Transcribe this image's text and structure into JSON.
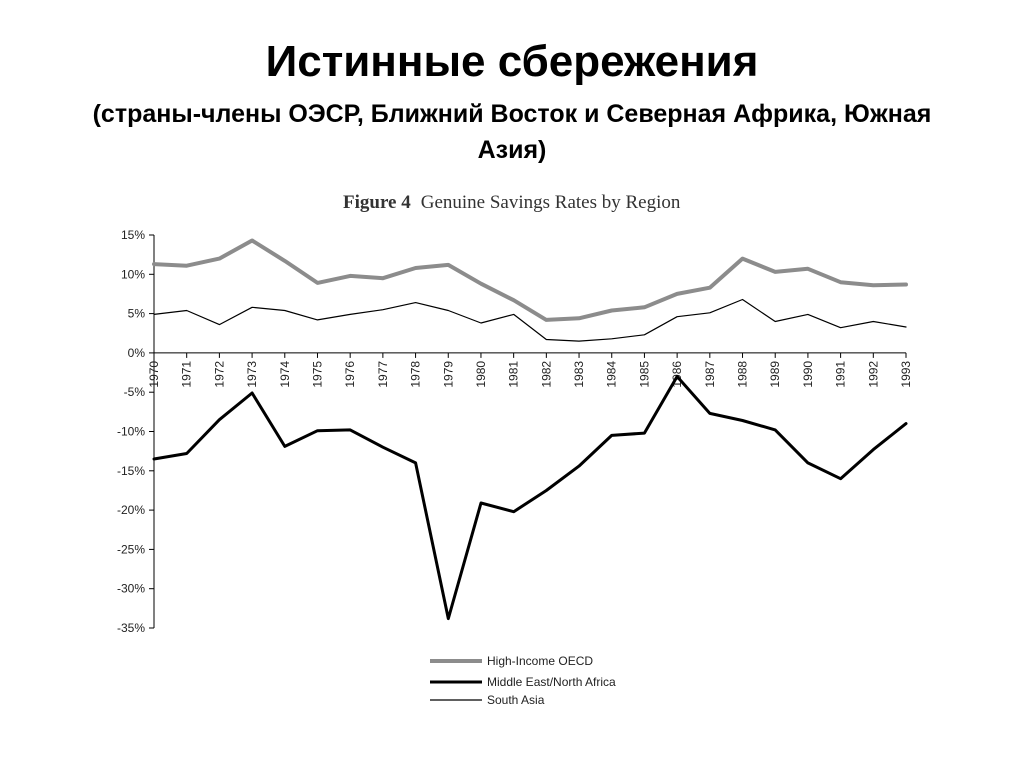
{
  "slide": {
    "title": "Истинные сбережения",
    "subtitle": "(страны-члены ОЭСР, Ближний Восток и Северная Африка, Южная Азия)"
  },
  "chart_data": {
    "type": "line",
    "figure_label": "Figure 4",
    "title": "Genuine Savings Rates by Region",
    "xlabel": "",
    "ylabel": "",
    "x": [
      "1970",
      "1971",
      "1972",
      "1973",
      "1974",
      "1975",
      "1976",
      "1977",
      "1978",
      "1979",
      "1980",
      "1981",
      "1982",
      "1983",
      "1984",
      "1985",
      "1986",
      "1987",
      "1988",
      "1989",
      "1990",
      "1991",
      "1992",
      "1993"
    ],
    "x_tick_labels": [
      "1970",
      "1971",
      "1972",
      "1973",
      "1974",
      "1975",
      "1976",
      "1977",
      "1978",
      "1979",
      "1980",
      "1981",
      "1982",
      "1983",
      "1984",
      "1985",
      "1986",
      "1987",
      "1988",
      "1989",
      "1990",
      "1991",
      "1992",
      "1993"
    ],
    "ylim": [
      -35,
      15
    ],
    "y_ticks": [
      15,
      10,
      5,
      0,
      -5,
      -10,
      -15,
      -20,
      -25,
      -30,
      -35
    ],
    "y_tick_labels": [
      "15%",
      "10%",
      "5%",
      "0%",
      "-5%",
      "-10%",
      "-15%",
      "-20%",
      "-25%",
      "-30%",
      "-35%"
    ],
    "grid": false,
    "legend_position": "bottom",
    "series": [
      {
        "name": "High-Income OECD",
        "color": "#8c8c8c",
        "style": "thick-gray",
        "values": [
          11.3,
          11.1,
          12.0,
          14.3,
          11.7,
          8.9,
          9.8,
          9.5,
          10.8,
          11.2,
          8.8,
          6.7,
          4.2,
          4.4,
          5.4,
          5.8,
          7.5,
          8.3,
          12.0,
          10.3,
          10.7,
          9.0,
          8.6,
          8.7
        ]
      },
      {
        "name": "Middle East/North Africa",
        "color": "#000000",
        "style": "thick-black",
        "values": [
          -13.5,
          -12.8,
          -8.5,
          -5.1,
          -11.9,
          -9.9,
          -9.8,
          -12.0,
          -14.0,
          -33.8,
          -19.1,
          -20.2,
          -17.5,
          -14.4,
          -10.5,
          -10.2,
          -3.0,
          -7.7,
          -8.6,
          -9.8,
          -14.0,
          -16.0,
          -12.3,
          -9.0
        ]
      },
      {
        "name": "South Asia",
        "color": "#000000",
        "style": "thin-black",
        "values": [
          4.9,
          5.4,
          3.6,
          5.8,
          5.4,
          4.2,
          4.9,
          5.5,
          6.4,
          5.4,
          3.8,
          4.9,
          1.7,
          1.5,
          1.8,
          2.3,
          4.6,
          5.1,
          6.8,
          4.0,
          4.9,
          3.2,
          4.0,
          3.3
        ]
      }
    ]
  }
}
